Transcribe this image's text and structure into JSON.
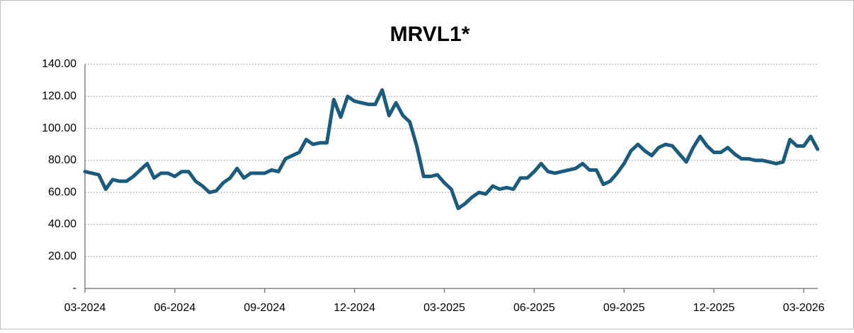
{
  "chart_data": {
    "type": "line",
    "title": "MRVL1*",
    "categories": [
      "03-2024",
      null,
      null,
      null,
      null,
      null,
      null,
      null,
      null,
      null,
      null,
      null,
      null,
      "06-2024",
      null,
      null,
      null,
      null,
      null,
      null,
      null,
      null,
      null,
      null,
      null,
      null,
      "09-2024",
      null,
      null,
      null,
      null,
      null,
      null,
      null,
      null,
      null,
      null,
      null,
      null,
      "12-2024",
      null,
      null,
      null,
      null,
      null,
      null,
      null,
      null,
      null,
      null,
      null,
      null,
      "03-2025",
      null,
      null,
      null,
      null,
      null,
      null,
      null,
      null,
      null,
      null,
      null,
      null,
      "06-2025",
      null,
      null,
      null,
      null,
      null,
      null,
      null,
      null,
      null,
      null,
      null,
      null,
      "09-2025",
      null,
      null,
      null,
      null,
      null,
      null,
      null,
      null,
      null,
      null,
      null,
      null,
      "12-2025",
      null,
      null,
      null,
      null,
      null,
      null,
      null,
      null,
      null,
      null,
      null,
      null,
      "03-2026",
      null,
      null
    ],
    "series": [
      {
        "name": "MRVL1*",
        "color": "#1b5c7e",
        "values": [
          73,
          72,
          71,
          62,
          68,
          67,
          67,
          70,
          74,
          78,
          69,
          72,
          72,
          70,
          73,
          73,
          67,
          64,
          60,
          61,
          66,
          69,
          75,
          69,
          72,
          72,
          72,
          74,
          73,
          81,
          83,
          85,
          93,
          90,
          91,
          91,
          118,
          107,
          120,
          117,
          116,
          115,
          115,
          124,
          108,
          116,
          108,
          104,
          89,
          70,
          70,
          71,
          66,
          62,
          50,
          53,
          57,
          60,
          59,
          64,
          62,
          63,
          62,
          69,
          69,
          73,
          78,
          73,
          72,
          73,
          74,
          75,
          78,
          74,
          74,
          65,
          67,
          72,
          78,
          86,
          90,
          86,
          83,
          88,
          90,
          89,
          84,
          79,
          88,
          95,
          89,
          85,
          85,
          88,
          84,
          81,
          81,
          80,
          80,
          79,
          78,
          79,
          93,
          89,
          89,
          95,
          87
        ]
      }
    ],
    "ylim": [
      0,
      140
    ],
    "yticks": [
      {
        "value": 0,
        "label": "-"
      },
      {
        "value": 20,
        "label": "20.00"
      },
      {
        "value": 40,
        "label": "40.00"
      },
      {
        "value": 60,
        "label": "60.00"
      },
      {
        "value": 80,
        "label": "80.00"
      },
      {
        "value": 100,
        "label": "100.00"
      },
      {
        "value": 120,
        "label": "120.00"
      },
      {
        "value": 140,
        "label": "140.00"
      }
    ],
    "grid": true
  }
}
